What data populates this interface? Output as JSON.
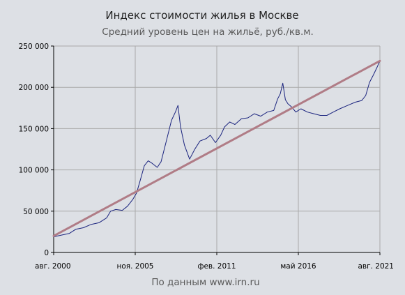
{
  "chart_data": {
    "type": "line",
    "title": "Индекс стоимости жилья в Москве",
    "subtitle": "Средний уровень цен на жильё, руб./кв.м.",
    "source_note": "По данным www.irn.ru",
    "x_range": [
      "2000-08",
      "2021-08"
    ],
    "ylim": [
      0,
      250000
    ],
    "grid": true,
    "y_ticks": [
      {
        "value": 0,
        "label": "0"
      },
      {
        "value": 50000,
        "label": "50 000"
      },
      {
        "value": 100000,
        "label": "100 000"
      },
      {
        "value": 150000,
        "label": "150 000"
      },
      {
        "value": 200000,
        "label": "200 000"
      },
      {
        "value": 250000,
        "label": "250 000"
      }
    ],
    "x_ticks": [
      {
        "date": "2000-08",
        "label": "авг. 2000"
      },
      {
        "date": "2005-11",
        "label": "ноя. 2005"
      },
      {
        "date": "2011-02",
        "label": "фев. 2011"
      },
      {
        "date": "2016-05",
        "label": "май 2016"
      },
      {
        "date": "2021-08",
        "label": "авг. 2021"
      }
    ],
    "colors": {
      "price": "#1a237e",
      "trend": "#b07c86",
      "grid": "#a9a9a9"
    },
    "series": [
      {
        "key": "price",
        "points": [
          [
            "2000-08",
            19000
          ],
          [
            "2001-02",
            21000
          ],
          [
            "2001-08",
            23000
          ],
          [
            "2002-01",
            28000
          ],
          [
            "2002-07",
            30000
          ],
          [
            "2003-01",
            34000
          ],
          [
            "2003-07",
            36000
          ],
          [
            "2004-01",
            42000
          ],
          [
            "2004-04",
            50000
          ],
          [
            "2004-08",
            52000
          ],
          [
            "2005-01",
            51000
          ],
          [
            "2005-05",
            56000
          ],
          [
            "2005-09",
            64000
          ],
          [
            "2005-12",
            72000
          ],
          [
            "2006-03",
            88000
          ],
          [
            "2006-06",
            105000
          ],
          [
            "2006-09",
            111000
          ],
          [
            "2006-12",
            108000
          ],
          [
            "2007-04",
            103000
          ],
          [
            "2007-07",
            110000
          ],
          [
            "2007-11",
            135000
          ],
          [
            "2008-03",
            160000
          ],
          [
            "2008-06",
            170000
          ],
          [
            "2008-08",
            178000
          ],
          [
            "2008-10",
            152000
          ],
          [
            "2009-01",
            130000
          ],
          [
            "2009-05",
            113000
          ],
          [
            "2009-09",
            125000
          ],
          [
            "2010-01",
            135000
          ],
          [
            "2010-06",
            138000
          ],
          [
            "2010-09",
            142000
          ],
          [
            "2011-01",
            133000
          ],
          [
            "2011-05",
            142000
          ],
          [
            "2011-08",
            152000
          ],
          [
            "2011-12",
            158000
          ],
          [
            "2012-04",
            155000
          ],
          [
            "2012-09",
            162000
          ],
          [
            "2013-02",
            163000
          ],
          [
            "2013-07",
            168000
          ],
          [
            "2013-12",
            165000
          ],
          [
            "2014-05",
            170000
          ],
          [
            "2014-10",
            172000
          ],
          [
            "2015-01",
            186000
          ],
          [
            "2015-03",
            192000
          ],
          [
            "2015-05",
            205000
          ],
          [
            "2015-07",
            185000
          ],
          [
            "2015-09",
            180000
          ],
          [
            "2015-12",
            176000
          ],
          [
            "2016-03",
            170000
          ],
          [
            "2016-07",
            174000
          ],
          [
            "2016-12",
            170000
          ],
          [
            "2017-05",
            168000
          ],
          [
            "2017-10",
            166000
          ],
          [
            "2018-03",
            166000
          ],
          [
            "2018-08",
            170000
          ],
          [
            "2019-01",
            174000
          ],
          [
            "2019-07",
            178000
          ],
          [
            "2020-01",
            182000
          ],
          [
            "2020-06",
            184000
          ],
          [
            "2020-09",
            190000
          ],
          [
            "2020-12",
            206000
          ],
          [
            "2021-03",
            215000
          ],
          [
            "2021-06",
            225000
          ],
          [
            "2021-08",
            232000
          ]
        ]
      },
      {
        "key": "trend",
        "points": [
          [
            "2000-08",
            20000
          ],
          [
            "2021-08",
            232000
          ]
        ]
      }
    ]
  }
}
